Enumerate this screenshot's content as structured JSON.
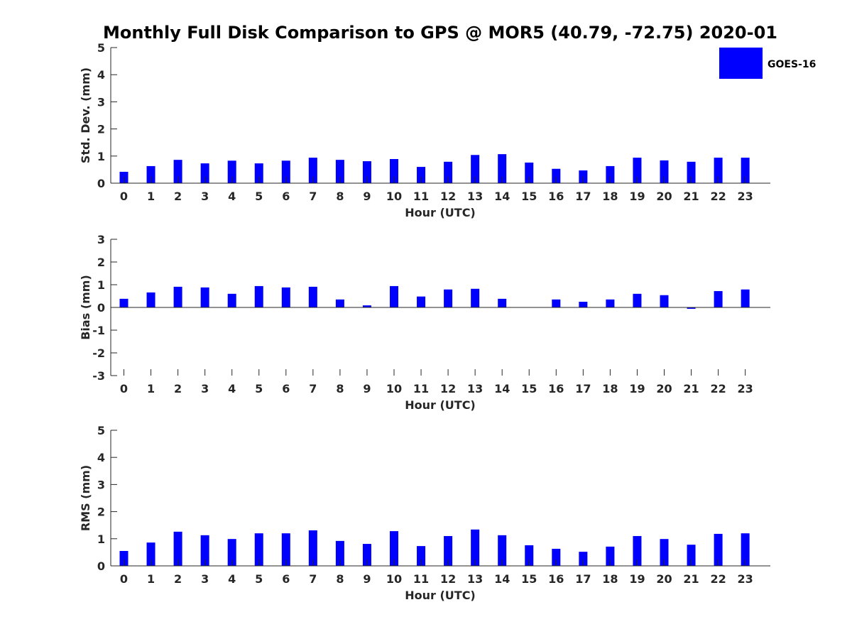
{
  "title": "Monthly Full Disk Comparison to GPS @ MOR5 (40.79, -72.75) 2020-01",
  "legend": {
    "label": "GOES-16",
    "color": "#0000ff"
  },
  "chart_data": [
    {
      "type": "bar",
      "name": "std-dev",
      "ylabel": "Std. Dev. (mm)",
      "xlabel": "Hour (UTC)",
      "ylim": [
        0,
        5
      ],
      "yticks": [
        "0",
        "1",
        "2",
        "3",
        "4",
        "5"
      ],
      "categories": [
        "0",
        "1",
        "2",
        "3",
        "4",
        "5",
        "6",
        "7",
        "8",
        "9",
        "10",
        "11",
        "12",
        "13",
        "14",
        "15",
        "16",
        "17",
        "18",
        "19",
        "20",
        "21",
        "22",
        "23"
      ],
      "series": [
        {
          "name": "GOES-16",
          "values": [
            0.42,
            0.63,
            0.86,
            0.73,
            0.83,
            0.73,
            0.83,
            0.94,
            0.86,
            0.81,
            0.89,
            0.6,
            0.79,
            1.04,
            1.07,
            0.76,
            0.53,
            0.47,
            0.63,
            0.94,
            0.84,
            0.79,
            0.94,
            0.94
          ]
        }
      ]
    },
    {
      "type": "bar",
      "name": "bias",
      "ylabel": "Bias (mm)",
      "xlabel": "Hour (UTC)",
      "ylim": [
        -3,
        3
      ],
      "yticks": [
        "-3",
        "-2",
        "-1",
        "0",
        "1",
        "2",
        "3"
      ],
      "categories": [
        "0",
        "1",
        "2",
        "3",
        "4",
        "5",
        "6",
        "7",
        "8",
        "9",
        "10",
        "11",
        "12",
        "13",
        "14",
        "15",
        "16",
        "17",
        "18",
        "19",
        "20",
        "21",
        "22",
        "23"
      ],
      "series": [
        {
          "name": "GOES-16",
          "values": [
            0.38,
            0.66,
            0.91,
            0.88,
            0.6,
            0.94,
            0.88,
            0.91,
            0.35,
            0.09,
            0.94,
            0.48,
            0.79,
            0.82,
            0.38,
            0.01,
            0.35,
            0.25,
            0.35,
            0.6,
            0.54,
            -0.06,
            0.72,
            0.79
          ]
        }
      ]
    },
    {
      "type": "bar",
      "name": "rms",
      "ylabel": "RMS (mm)",
      "xlabel": "Hour (UTC)",
      "ylim": [
        0,
        5
      ],
      "yticks": [
        "0",
        "1",
        "2",
        "3",
        "4",
        "5"
      ],
      "categories": [
        "0",
        "1",
        "2",
        "3",
        "4",
        "5",
        "6",
        "7",
        "8",
        "9",
        "10",
        "11",
        "12",
        "13",
        "14",
        "15",
        "16",
        "17",
        "18",
        "19",
        "20",
        "21",
        "22",
        "23"
      ],
      "series": [
        {
          "name": "GOES-16",
          "values": [
            0.55,
            0.86,
            1.26,
            1.13,
            0.99,
            1.2,
            1.2,
            1.31,
            0.92,
            0.81,
            1.28,
            0.73,
            1.1,
            1.34,
            1.13,
            0.76,
            0.63,
            0.52,
            0.71,
            1.1,
            0.99,
            0.78,
            1.18,
            1.2
          ]
        }
      ]
    }
  ]
}
